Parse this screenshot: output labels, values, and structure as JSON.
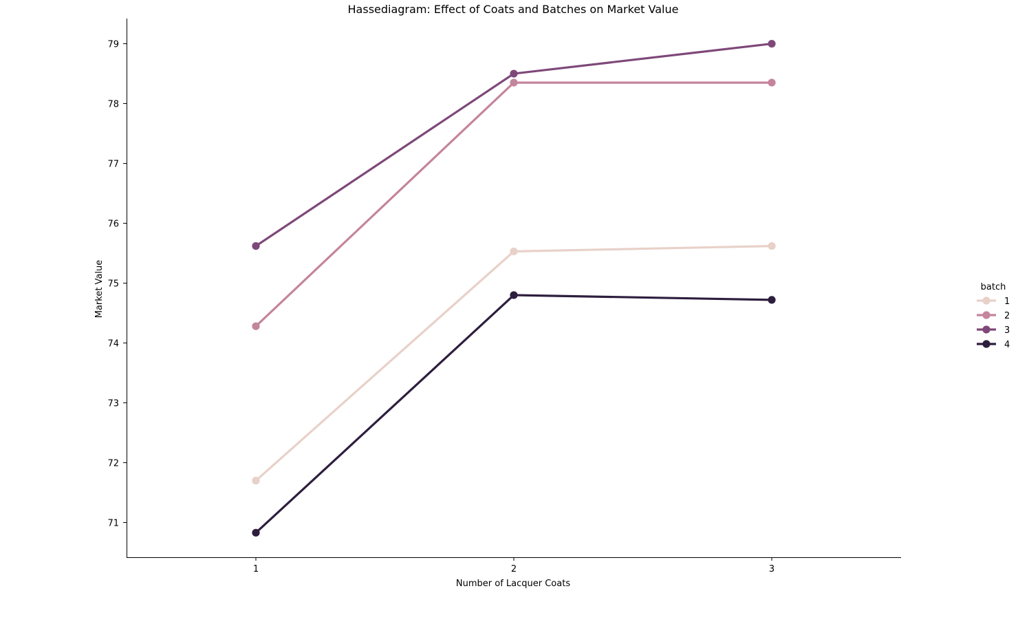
{
  "chart_data": {
    "type": "line",
    "title": "Hassediagram: Effect of Coats and Batches on Market Value",
    "xlabel": "Number of Lacquer Coats",
    "ylabel": "Market Value",
    "categories": [
      "1",
      "2",
      "3"
    ],
    "ylim": [
      70.42,
      79.42
    ],
    "yticks": [
      71,
      72,
      73,
      74,
      75,
      76,
      77,
      78,
      79
    ],
    "grid": false,
    "legend": {
      "title": "batch",
      "placement": "right"
    },
    "series": [
      {
        "name": "1",
        "color": "#e8d1c9",
        "values": [
          71.7,
          75.53,
          75.62
        ]
      },
      {
        "name": "2",
        "color": "#c4849c",
        "values": [
          74.28,
          78.35,
          78.35
        ]
      },
      {
        "name": "3",
        "color": "#7e4878",
        "values": [
          75.62,
          78.5,
          79.0
        ]
      },
      {
        "name": "4",
        "color": "#2d1e3e",
        "values": [
          70.83,
          74.8,
          74.72
        ]
      }
    ]
  }
}
